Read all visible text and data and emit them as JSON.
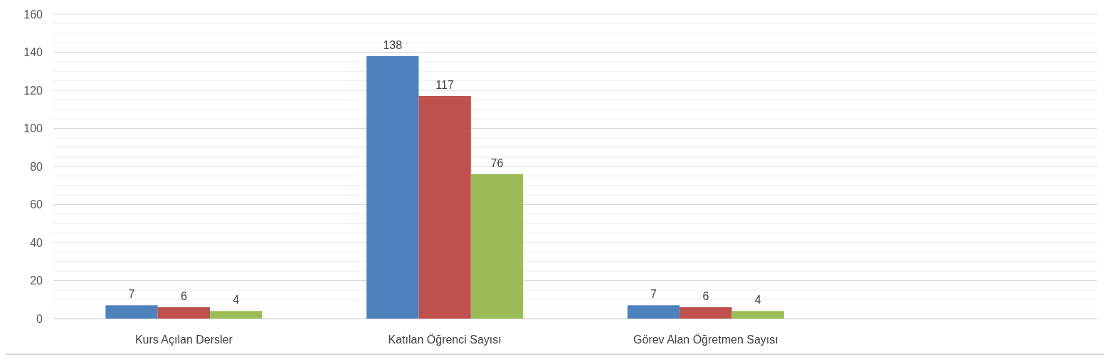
{
  "chart_data": {
    "type": "bar",
    "categories": [
      "Kurs Açılan Dersler",
      "Katılan Öğrenci Sayısı",
      "Görev Alan Öğretmen Sayısı",
      null
    ],
    "series": [
      {
        "color": "#4f81bd",
        "values": [
          7,
          138,
          7,
          null
        ]
      },
      {
        "color": "#c0504d",
        "values": [
          6,
          117,
          6,
          null
        ]
      },
      {
        "color": "#9bbb59",
        "values": [
          4,
          76,
          4,
          null
        ]
      }
    ],
    "ylim": [
      0,
      160
    ],
    "yticks": [
      0,
      {
        "value": 5,
        "label": null
      },
      {
        "value": 10,
        "label": null
      },
      {
        "value": 15,
        "label": null
      },
      20,
      {
        "value": 25,
        "label": null
      },
      {
        "value": 30,
        "label": null
      },
      {
        "value": 35,
        "label": null
      },
      40,
      {
        "value": 45,
        "label": null
      },
      {
        "value": 50,
        "label": null
      },
      {
        "value": 55,
        "label": null
      },
      60,
      {
        "value": 65,
        "label": null
      },
      {
        "value": 70,
        "label": null
      },
      {
        "value": 75,
        "label": null
      },
      80,
      {
        "value": 85,
        "label": null
      },
      {
        "value": 90,
        "label": null
      },
      {
        "value": 95,
        "label": null
      },
      100,
      {
        "value": 105,
        "label": null
      },
      {
        "value": 110,
        "label": null
      },
      {
        "value": 115,
        "label": null
      },
      120,
      {
        "value": 125,
        "label": null
      },
      {
        "value": 130,
        "label": null
      },
      {
        "value": 135,
        "label": null
      },
      140,
      {
        "value": 145,
        "label": null
      },
      {
        "value": 150,
        "label": null
      },
      {
        "value": 155,
        "label": null
      },
      160
    ],
    "grid": true,
    "data_labels": true
  }
}
